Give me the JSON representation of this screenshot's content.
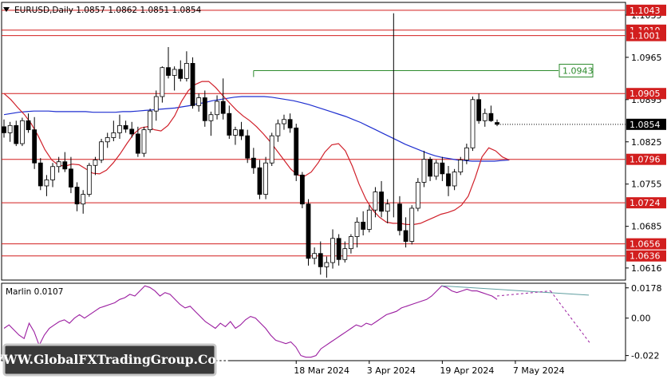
{
  "header": {
    "symbol_info": "EURUSD,Daily  1.0857  1.0862  1.0851  1.0854"
  },
  "watermark": "WWW.GlobalFXTradingGroup.Com",
  "colors": {
    "bull": "#ffffff",
    "bear": "#000000",
    "ma_blue": "#1f2fd0",
    "ma_red": "#d0202a",
    "level_red": "#d21e1e",
    "target_green": "#2e8b2e",
    "marlin": "#9b1da0",
    "divergence": "#5f9ea0"
  },
  "chart_data": [
    {
      "type": "candlestick",
      "title": "EURUSD,Daily",
      "ylim": [
        1.0596,
        1.1056
      ],
      "last_price": "1.0854",
      "xticks": [
        {
          "label": "18 Mar 2024",
          "index": 48
        },
        {
          "label": "3 Apr 2024",
          "index": 60
        },
        {
          "label": "19 Apr 2024",
          "index": 72
        },
        {
          "label": "7 May 2024",
          "index": 84
        }
      ],
      "yticks": [
        "1.1035",
        "1.0965",
        "1.0895",
        "1.0825",
        "1.0755",
        "1.0685",
        "1.0616"
      ],
      "levels": [
        {
          "label": "1.1043",
          "value": 1.1043
        },
        {
          "label": "1.1010",
          "value": 1.101
        },
        {
          "label": "1.1001",
          "value": 1.1001
        },
        {
          "label": "1.0905",
          "value": 1.0905
        },
        {
          "label": "1.0796",
          "value": 1.0796
        },
        {
          "label": "1.0724",
          "value": 1.0724
        },
        {
          "label": "1.0656",
          "value": 1.0656
        },
        {
          "label": "1.0636",
          "value": 1.0636
        }
      ],
      "target_level": {
        "label": "1.0943",
        "value": 1.0943
      },
      "candles": [
        [
          1.085,
          1.0862,
          1.0832,
          1.084
        ],
        [
          1.084,
          1.0858,
          1.0825,
          1.0852
        ],
        [
          1.0852,
          1.086,
          1.0818,
          1.0822
        ],
        [
          1.0822,
          1.0865,
          1.0818,
          1.086
        ],
        [
          1.086,
          1.0872,
          1.084,
          1.0845
        ],
        [
          1.0845,
          1.0866,
          1.078,
          1.079
        ],
        [
          1.079,
          1.0798,
          1.0745,
          1.0752
        ],
        [
          1.0752,
          1.077,
          1.0735,
          1.0762
        ],
        [
          1.0762,
          1.079,
          1.075,
          1.0784
        ],
        [
          1.0784,
          1.08,
          1.0774,
          1.0792
        ],
        [
          1.0792,
          1.0808,
          1.0775,
          1.078
        ],
        [
          1.078,
          1.08,
          1.074,
          1.075
        ],
        [
          1.075,
          1.0758,
          1.071,
          1.0722
        ],
        [
          1.0722,
          1.0745,
          1.0706,
          1.0738
        ],
        [
          1.0738,
          1.079,
          1.0734,
          1.0786
        ],
        [
          1.0786,
          1.08,
          1.077,
          1.0795
        ],
        [
          1.0795,
          1.083,
          1.079,
          1.0825
        ],
        [
          1.0825,
          1.084,
          1.0815,
          1.0832
        ],
        [
          1.0832,
          1.086,
          1.0826,
          1.084
        ],
        [
          1.084,
          1.087,
          1.083,
          1.0852
        ],
        [
          1.0852,
          1.086,
          1.084,
          1.0846
        ],
        [
          1.0846,
          1.0858,
          1.0832,
          1.0838
        ],
        [
          1.0838,
          1.085,
          1.08,
          1.0806
        ],
        [
          1.0806,
          1.085,
          1.08,
          1.0845
        ],
        [
          1.0845,
          1.088,
          1.084,
          1.0876
        ],
        [
          1.0876,
          1.091,
          1.086,
          1.09
        ],
        [
          1.09,
          1.095,
          1.089,
          1.0948
        ],
        [
          1.0948,
          1.0982,
          1.093,
          1.0935
        ],
        [
          1.0935,
          1.095,
          1.091,
          1.0945
        ],
        [
          1.0945,
          1.096,
          1.0925,
          1.093
        ],
        [
          1.093,
          1.0975,
          1.0925,
          1.0955
        ],
        [
          1.0955,
          1.0965,
          1.088,
          1.0885
        ],
        [
          1.0885,
          1.0905,
          1.0875,
          1.0898
        ],
        [
          1.0898,
          1.091,
          1.085,
          1.086
        ],
        [
          1.086,
          1.0875,
          1.0835,
          1.087
        ],
        [
          1.087,
          1.0902,
          1.0862,
          1.0892
        ],
        [
          1.0892,
          1.093,
          1.0862,
          1.0872
        ],
        [
          1.0872,
          1.0885,
          1.083,
          1.0836
        ],
        [
          1.0836,
          1.085,
          1.082,
          1.0845
        ],
        [
          1.0845,
          1.0858,
          1.0828,
          1.0835
        ],
        [
          1.0835,
          1.0845,
          1.079,
          1.0798
        ],
        [
          1.0798,
          1.0815,
          1.0772,
          1.0782
        ],
        [
          1.0782,
          1.0795,
          1.073,
          1.0738
        ],
        [
          1.0738,
          1.08,
          1.073,
          1.079
        ],
        [
          1.079,
          1.084,
          1.0785,
          1.0835
        ],
        [
          1.0835,
          1.0862,
          1.0825,
          1.0855
        ],
        [
          1.0855,
          1.087,
          1.0845,
          1.0862
        ],
        [
          1.0862,
          1.0872,
          1.084,
          1.0848
        ],
        [
          1.0848,
          1.0855,
          1.076,
          1.077
        ],
        [
          1.077,
          1.0775,
          1.0715,
          1.0722
        ],
        [
          1.0722,
          1.073,
          1.062,
          1.0632
        ],
        [
          1.0632,
          1.065,
          1.0622,
          1.064
        ],
        [
          1.064,
          1.066,
          1.0605,
          1.0618
        ],
        [
          1.0618,
          1.0635,
          1.06,
          1.0625
        ],
        [
          1.0625,
          1.068,
          1.0615,
          1.0665
        ],
        [
          1.0665,
          1.0672,
          1.062,
          1.063
        ],
        [
          1.063,
          1.066,
          1.0625,
          1.0648
        ],
        [
          1.0648,
          1.0672,
          1.064,
          1.0668
        ],
        [
          1.0668,
          1.07,
          1.065,
          1.0692
        ],
        [
          1.0692,
          1.071,
          1.067,
          1.068
        ],
        [
          1.068,
          1.072,
          1.0675,
          1.0712
        ],
        [
          1.0712,
          1.075,
          1.07,
          1.0742
        ],
        [
          1.0742,
          1.076,
          1.07,
          1.071
        ],
        [
          1.071,
          1.073,
          1.069,
          1.0722
        ],
        [
          1.1038,
          1.1038,
          1.1038,
          1.1038
        ],
        [
          1.0722,
          1.0735,
          1.067,
          1.0678
        ],
        [
          1.0678,
          1.07,
          1.065,
          1.066
        ],
        [
          1.066,
          1.072,
          1.0655,
          1.0715
        ],
        [
          1.0715,
          1.0765,
          1.071,
          1.0758
        ],
        [
          1.0758,
          1.081,
          1.075,
          1.0796
        ],
        [
          1.0796,
          1.08,
          1.076,
          1.0768
        ],
        [
          1.0768,
          1.0795,
          1.0762,
          1.079
        ],
        [
          1.079,
          1.08,
          1.076,
          1.0772
        ],
        [
          1.0772,
          1.0785,
          1.0735,
          1.0752
        ],
        [
          1.0752,
          1.078,
          1.0745,
          1.0775
        ],
        [
          1.0775,
          1.08,
          1.077,
          1.0795
        ],
        [
          1.0795,
          1.0822,
          1.0788,
          1.0815
        ],
        [
          1.0815,
          1.09,
          1.081,
          1.0895
        ],
        [
          1.0895,
          1.0905,
          1.0855,
          1.086
        ],
        [
          1.086,
          1.088,
          1.085,
          1.0872
        ],
        [
          1.0872,
          1.0885,
          1.0858,
          1.086
        ],
        [
          1.0857,
          1.0862,
          1.0851,
          1.0854
        ]
      ],
      "ma_blue": [
        1.087,
        1.0872,
        1.0874,
        1.0875,
        1.0876,
        1.0876,
        1.0876,
        1.0875,
        1.0875,
        1.0875,
        1.0875,
        1.0875,
        1.0874,
        1.0874,
        1.0874,
        1.0874,
        1.0875,
        1.0875,
        1.0876,
        1.0877,
        1.0878,
        1.0879,
        1.088,
        1.0881,
        1.0883,
        1.0885,
        1.0888,
        1.089,
        1.0893,
        1.0895,
        1.0897,
        1.0899,
        1.09,
        1.09,
        1.09,
        1.09,
        1.0899,
        1.0897,
        1.0895,
        1.0893,
        1.089,
        1.0887,
        1.0883,
        1.0879,
        1.0875,
        1.0871,
        1.0867,
        1.0862,
        1.0857,
        1.0851,
        1.0845,
        1.0839,
        1.0833,
        1.0827,
        1.0821,
        1.0816,
        1.0811,
        1.0806,
        1.0802,
        1.0799,
        1.0797,
        1.0795,
        1.0794,
        1.0793,
        1.0793,
        1.0793,
        1.0793,
        1.0794,
        1.0795
      ],
      "ma_red": [
        1.0905,
        1.0895,
        1.0882,
        1.087,
        1.0855,
        1.0835,
        1.0812,
        1.0795,
        1.0786,
        1.0785,
        1.0788,
        1.0787,
        1.078,
        1.0773,
        1.0772,
        1.0778,
        1.079,
        1.0805,
        1.0822,
        1.0838,
        1.0848,
        1.085,
        1.0845,
        1.0843,
        1.0852,
        1.0868,
        1.0892,
        1.091,
        1.092,
        1.0925,
        1.0925,
        1.0915,
        1.0902,
        1.089,
        1.0878,
        1.0868,
        1.086,
        1.085,
        1.0838,
        1.0825,
        1.081,
        1.0795,
        1.078,
        1.077,
        1.0768,
        1.0775,
        1.079,
        1.0808,
        1.082,
        1.0822,
        1.081,
        1.0785,
        1.0755,
        1.073,
        1.0712,
        1.07,
        1.0692,
        1.069,
        1.069,
        1.0688,
        1.0688,
        1.069,
        1.0695,
        1.07,
        1.0705,
        1.0708,
        1.0712,
        1.072,
        1.0735,
        1.0765,
        1.08,
        1.0815,
        1.081,
        1.08,
        1.0795
      ]
    },
    {
      "type": "line",
      "title": "Marlin 0.0107",
      "ylim": [
        -0.025,
        0.0205
      ],
      "yticks": [
        "0.0178",
        "0.00",
        "-0.022"
      ],
      "values": [
        -0.006,
        -0.004,
        -0.007,
        -0.01,
        -0.012,
        -0.003,
        -0.008,
        -0.016,
        -0.01,
        -0.006,
        -0.004,
        -0.002,
        -0.001,
        -0.003,
        0.0,
        0.002,
        0.0,
        0.002,
        0.004,
        0.006,
        0.007,
        0.008,
        0.009,
        0.011,
        0.012,
        0.014,
        0.013,
        0.016,
        0.019,
        0.018,
        0.016,
        0.013,
        0.015,
        0.014,
        0.011,
        0.008,
        0.006,
        0.007,
        0.004,
        0.001,
        -0.002,
        -0.004,
        -0.006,
        -0.003,
        -0.005,
        -0.002,
        -0.006,
        -0.004,
        -0.001,
        0.001,
        0.0,
        -0.003,
        -0.006,
        -0.01,
        -0.013,
        -0.014,
        -0.015,
        -0.014,
        -0.017,
        -0.022,
        -0.023,
        -0.023,
        -0.022,
        -0.018,
        -0.016,
        -0.014,
        -0.012,
        -0.01,
        -0.008,
        -0.006,
        -0.004,
        -0.005,
        -0.003,
        -0.004,
        -0.002,
        0.0,
        0.002,
        0.003,
        0.004,
        0.006,
        0.007,
        0.008,
        0.009,
        0.01,
        0.011,
        0.013,
        0.016,
        0.019,
        0.018,
        0.016,
        0.015,
        0.016,
        0.017,
        0.016,
        0.016,
        0.015,
        0.014,
        0.013,
        0.011
      ]
    }
  ]
}
